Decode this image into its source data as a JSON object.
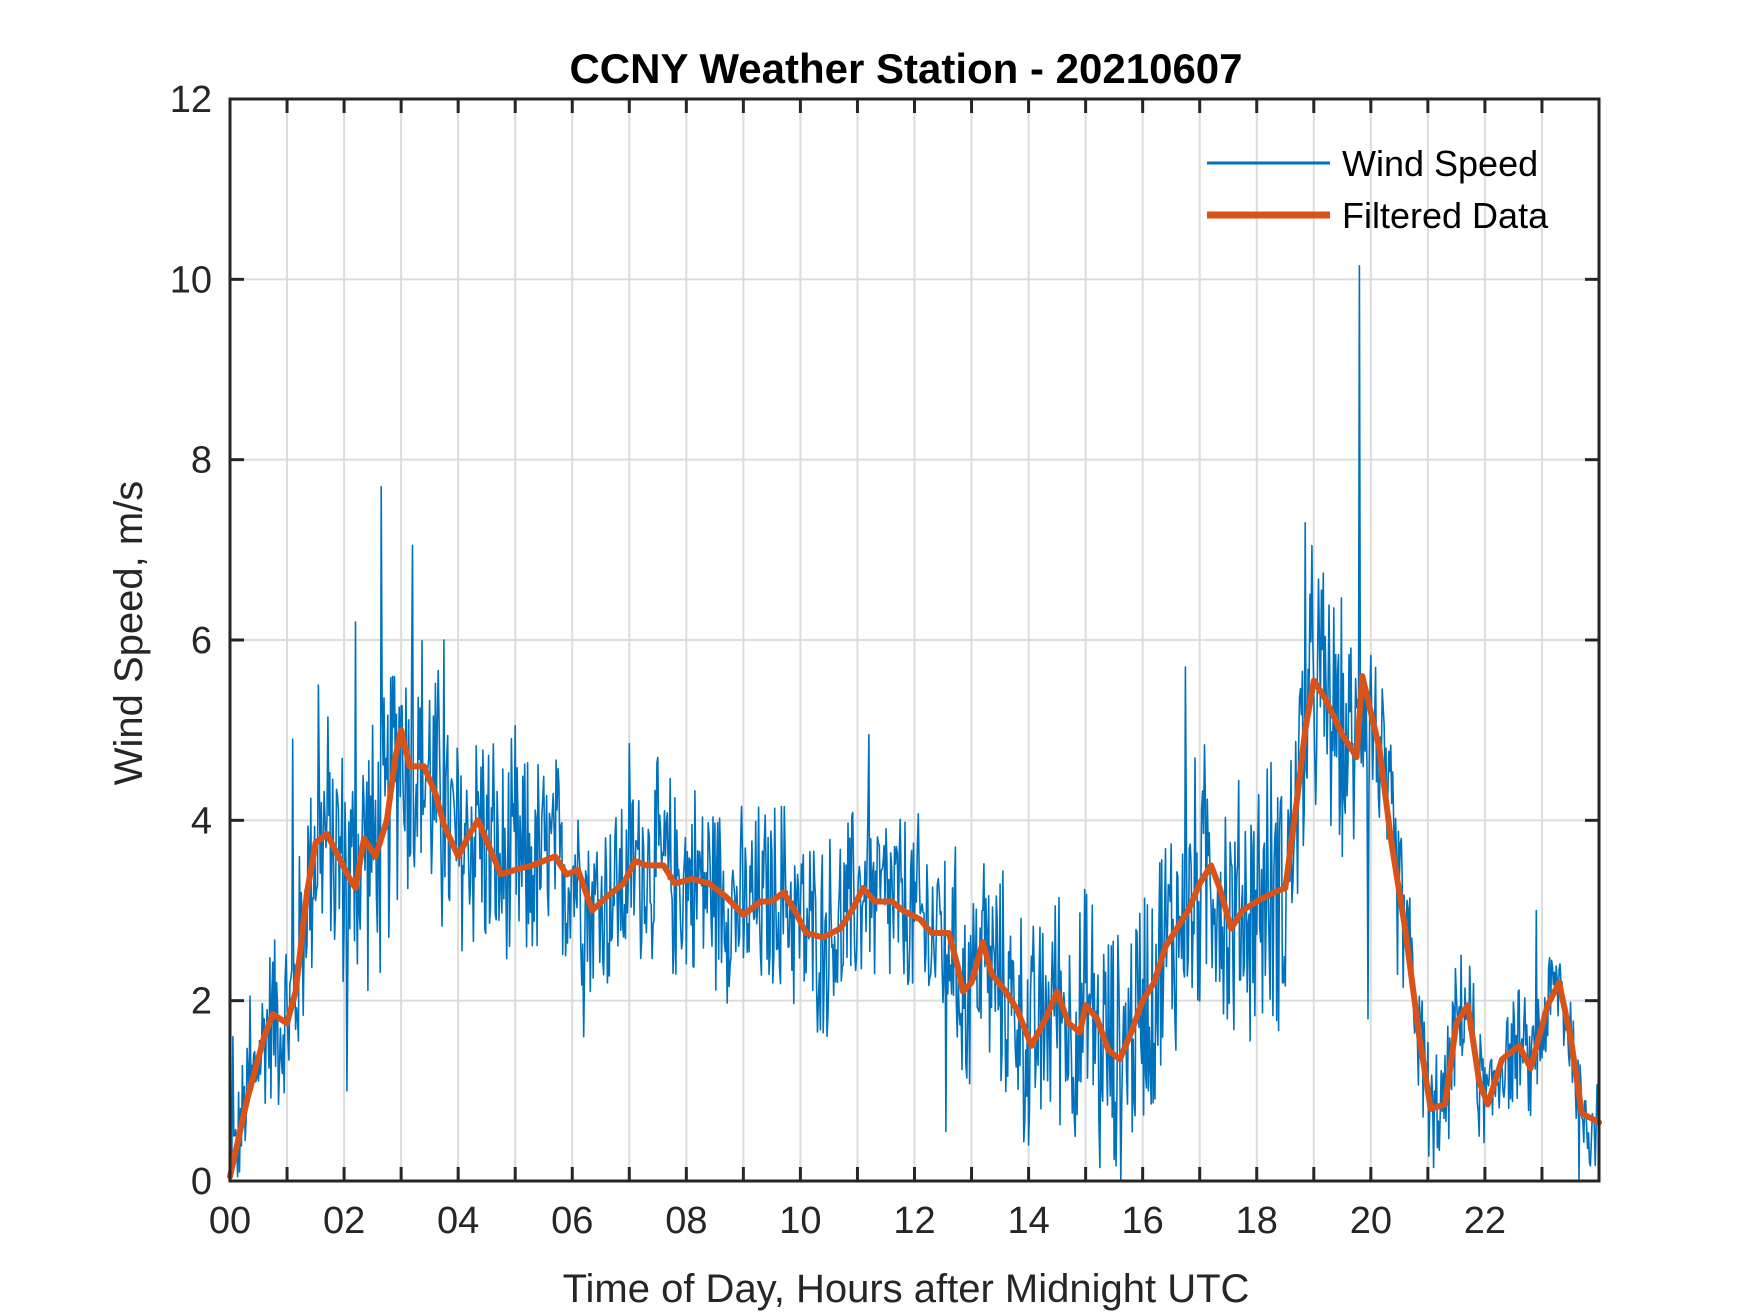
{
  "chart_data": {
    "type": "line",
    "title": "CCNY Weather Station - 20210607",
    "xlabel": "Time of Day, Hours after Midnight UTC",
    "ylabel": "Wind Speed, m/s",
    "xlim": [
      0,
      24
    ],
    "ylim": [
      0,
      12
    ],
    "xticks": [
      0,
      2,
      4,
      6,
      8,
      10,
      12,
      14,
      16,
      18,
      20,
      22
    ],
    "xtick_labels": [
      "00",
      "02",
      "04",
      "06",
      "08",
      "10",
      "12",
      "14",
      "16",
      "18",
      "20",
      "22"
    ],
    "xgrid_minor_step_hours": 1,
    "yticks": [
      0,
      2,
      4,
      6,
      8,
      10,
      12
    ],
    "ytick_labels": [
      "0",
      "2",
      "4",
      "6",
      "8",
      "10",
      "12"
    ],
    "grid": true,
    "legend": {
      "placement": "top-right",
      "boxed": false
    },
    "colors": {
      "wind_speed": "#0072BD",
      "filtered": "#D95319",
      "axis": "#262626",
      "grid": "#dcdcdc"
    },
    "series": [
      {
        "name": "Wind Speed",
        "style": "thin",
        "description": "High-frequency raw samples fluctuating around the filtered trend",
        "spikes": [
          {
            "x": 0.05,
            "y": 1.6
          },
          {
            "x": 0.35,
            "y": 2.05
          },
          {
            "x": 1.1,
            "y": 4.9
          },
          {
            "x": 1.55,
            "y": 5.5
          },
          {
            "x": 2.05,
            "y": 1.0
          },
          {
            "x": 2.2,
            "y": 6.2
          },
          {
            "x": 2.65,
            "y": 7.7
          },
          {
            "x": 3.2,
            "y": 7.05
          },
          {
            "x": 3.75,
            "y": 6.0
          },
          {
            "x": 5.0,
            "y": 5.05
          },
          {
            "x": 6.2,
            "y": 1.6
          },
          {
            "x": 7.0,
            "y": 4.85
          },
          {
            "x": 11.2,
            "y": 4.95
          },
          {
            "x": 12.55,
            "y": 0.55
          },
          {
            "x": 14.0,
            "y": 0.4
          },
          {
            "x": 15.25,
            "y": 0.15
          },
          {
            "x": 16.75,
            "y": 5.7
          },
          {
            "x": 18.85,
            "y": 7.3
          },
          {
            "x": 19.8,
            "y": 10.15
          },
          {
            "x": 19.95,
            "y": 1.8
          },
          {
            "x": 21.1,
            "y": 0.15
          },
          {
            "x": 22.9,
            "y": 3.0
          },
          {
            "x": 23.65,
            "y": 0.0
          }
        ],
        "noise_amplitude": [
          {
            "x": 0,
            "a": 0.5
          },
          {
            "x": 1.2,
            "a": 1.1
          },
          {
            "x": 3.0,
            "a": 1.5
          },
          {
            "x": 6.0,
            "a": 1.0
          },
          {
            "x": 12.0,
            "a": 1.0
          },
          {
            "x": 16.0,
            "a": 1.3
          },
          {
            "x": 19.0,
            "a": 1.4
          },
          {
            "x": 20.5,
            "a": 0.9
          },
          {
            "x": 21.0,
            "a": 0.6
          },
          {
            "x": 24.0,
            "a": 0.55
          }
        ]
      },
      {
        "name": "Filtered Data",
        "style": "thick",
        "x": [
          0,
          0.3,
          0.6,
          0.75,
          1.0,
          1.15,
          1.35,
          1.5,
          1.7,
          1.9,
          2.1,
          2.2,
          2.35,
          2.55,
          2.75,
          2.9,
          3.0,
          3.15,
          3.4,
          3.6,
          3.75,
          4.0,
          4.2,
          4.35,
          4.55,
          4.75,
          5.0,
          5.3,
          5.5,
          5.7,
          5.9,
          6.1,
          6.35,
          6.6,
          6.9,
          7.1,
          7.3,
          7.6,
          7.8,
          8.1,
          8.4,
          8.7,
          9.0,
          9.3,
          9.5,
          9.7,
          9.9,
          10.1,
          10.4,
          10.7,
          10.9,
          11.1,
          11.3,
          11.6,
          11.8,
          12.1,
          12.3,
          12.6,
          12.75,
          12.85,
          13.0,
          13.2,
          13.35,
          13.6,
          13.8,
          14.05,
          14.3,
          14.5,
          14.7,
          14.9,
          15.0,
          15.2,
          15.4,
          15.6,
          15.8,
          16.0,
          16.2,
          16.4,
          16.6,
          16.8,
          17.0,
          17.2,
          17.35,
          17.55,
          17.75,
          18.0,
          18.3,
          18.5,
          18.7,
          18.85,
          19.0,
          19.2,
          19.5,
          19.75,
          19.85,
          20.0,
          20.15,
          20.35,
          20.6,
          20.85,
          21.05,
          21.3,
          21.5,
          21.7,
          21.9,
          22.05,
          22.3,
          22.6,
          22.8,
          23.1,
          23.3,
          23.5,
          23.7,
          24.0
        ],
        "y": [
          0.05,
          0.9,
          1.6,
          1.85,
          1.75,
          2.1,
          3.2,
          3.75,
          3.85,
          3.6,
          3.35,
          3.25,
          3.8,
          3.6,
          4.0,
          4.7,
          5.0,
          4.6,
          4.6,
          4.3,
          3.95,
          3.6,
          3.85,
          4.0,
          3.7,
          3.4,
          3.45,
          3.5,
          3.55,
          3.6,
          3.4,
          3.45,
          3.0,
          3.15,
          3.3,
          3.55,
          3.5,
          3.5,
          3.3,
          3.35,
          3.3,
          3.15,
          2.95,
          3.1,
          3.1,
          3.2,
          3.0,
          2.75,
          2.7,
          2.8,
          3.0,
          3.25,
          3.1,
          3.1,
          3.0,
          2.9,
          2.75,
          2.75,
          2.4,
          2.1,
          2.2,
          2.65,
          2.3,
          2.1,
          1.9,
          1.5,
          1.8,
          2.1,
          1.75,
          1.65,
          1.95,
          1.8,
          1.45,
          1.35,
          1.65,
          2.0,
          2.2,
          2.6,
          2.8,
          3.0,
          3.3,
          3.5,
          3.25,
          2.8,
          3.0,
          3.1,
          3.2,
          3.25,
          4.2,
          5.0,
          5.55,
          5.35,
          4.95,
          4.7,
          5.6,
          5.2,
          4.8,
          3.8,
          2.8,
          1.6,
          0.8,
          0.85,
          1.75,
          1.95,
          1.1,
          0.85,
          1.35,
          1.5,
          1.25,
          1.95,
          2.2,
          1.6,
          0.75,
          0.65
        ]
      }
    ]
  }
}
